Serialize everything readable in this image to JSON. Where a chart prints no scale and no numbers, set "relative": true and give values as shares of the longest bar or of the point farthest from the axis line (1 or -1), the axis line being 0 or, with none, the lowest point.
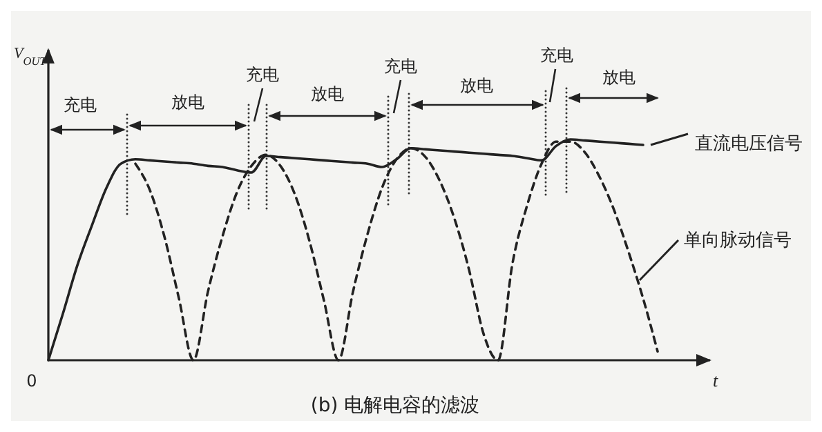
{
  "chart_data": {
    "type": "line",
    "relative": true,
    "title": "(b) 电解电容的滤波",
    "xlabel": "t",
    "ylabel": "V$_{OUT}$",
    "legend": "right",
    "marker": "none",
    "grid": false,
    "categories": [
      null,
      null,
      null,
      null,
      null,
      null,
      null,
      null,
      null,
      null,
      null,
      null,
      null,
      null,
      null,
      null,
      null,
      null,
      null,
      null,
      null,
      null,
      null,
      null,
      null,
      null,
      null,
      null,
      null,
      null,
      null,
      null,
      null,
      null,
      null,
      null,
      null,
      null,
      null,
      null,
      null,
      null,
      null,
      null,
      null,
      null
    ],
    "series": [
      {
        "name": "直流电压信号",
        "color": "#222222",
        "line_style": "solid",
        "values": [
          0,
          0.21,
          0.43,
          0.61,
          0.78,
          0.89,
          0.91,
          0.905,
          0.9,
          0.895,
          0.89,
          0.88,
          0.875,
          0.86,
          0.85,
          0.925,
          0.92,
          0.915,
          0.91,
          0.905,
          0.9,
          0.895,
          0.89,
          0.875,
          0.91,
          0.96,
          0.955,
          0.95,
          0.945,
          0.94,
          0.935,
          0.93,
          0.925,
          0.915,
          0.905,
          0.97,
          1,
          0.995,
          0.99,
          0.985,
          0.98,
          0.975,
          null,
          null,
          null,
          null
        ]
      },
      {
        "name": "单向脉动信号",
        "color": "#222222",
        "line_style": "dashed",
        "values": [
          null,
          null,
          null,
          null,
          null,
          null,
          0.89,
          0.77,
          0.56,
          0.28,
          0,
          0.31,
          0.56,
          0.76,
          0.88,
          0.93,
          0.88,
          0.75,
          0.54,
          0.27,
          0,
          0.31,
          0.57,
          0.78,
          0.91,
          0.96,
          0.92,
          0.81,
          0.64,
          0.41,
          0.12,
          0,
          0.44,
          0.7,
          0.89,
          0.99,
          0.99,
          0.94,
          0.83,
          0.68,
          0.49,
          0.28,
          0.04,
          null,
          null,
          null
        ]
      }
    ],
    "annotations": [
      "充电",
      "放电",
      "充电",
      "放电",
      "充电",
      "放电",
      "充电",
      "放电",
      "0"
    ]
  }
}
